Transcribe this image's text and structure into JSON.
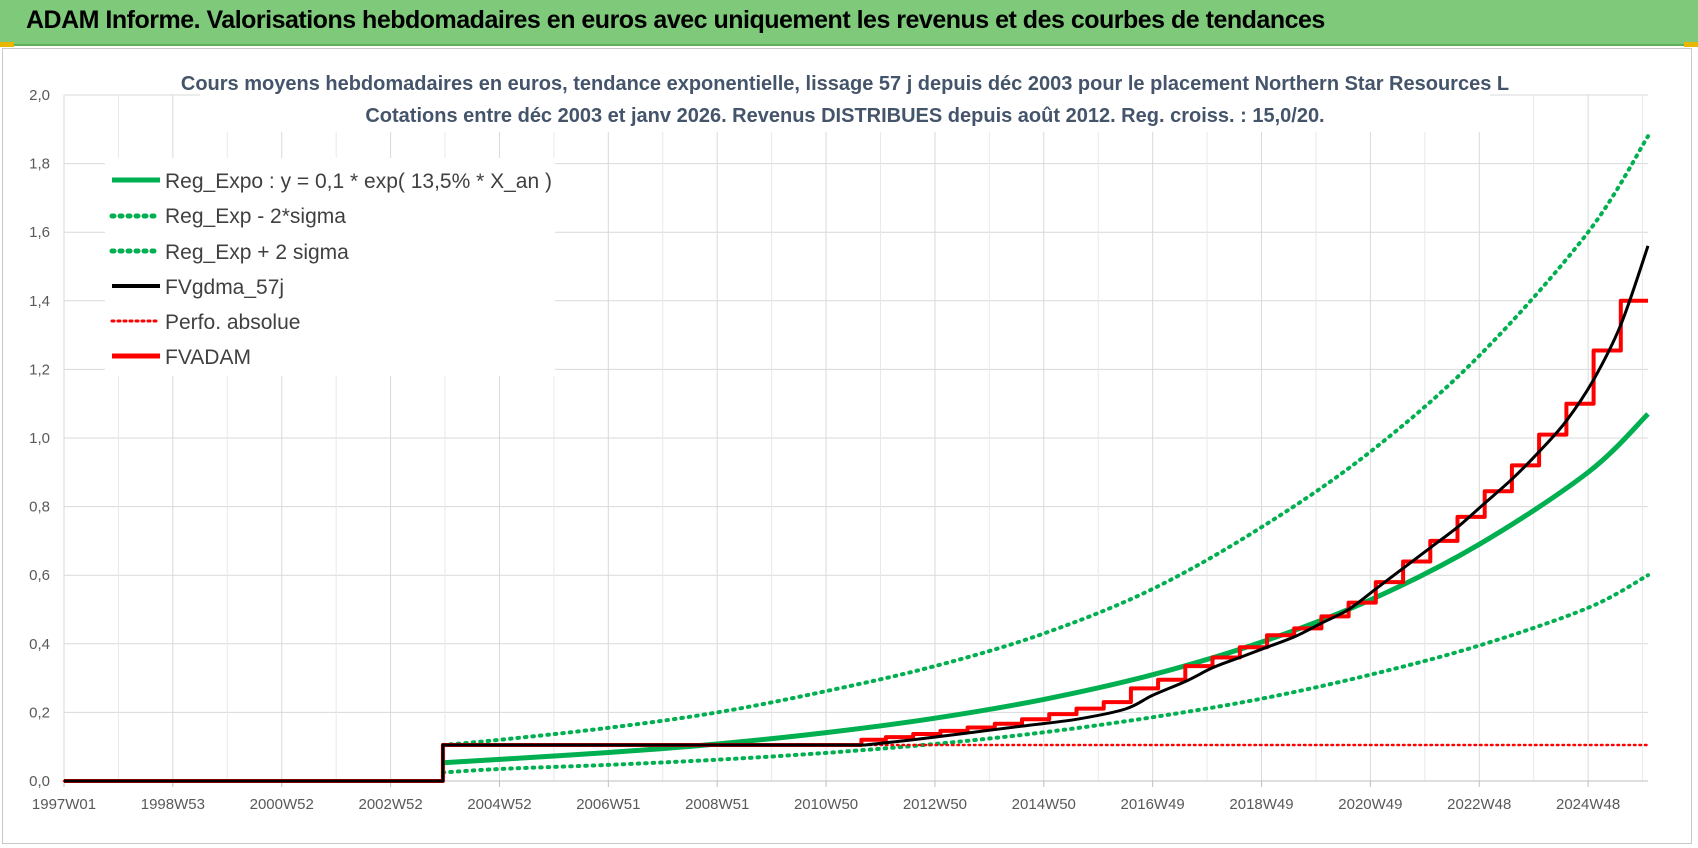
{
  "banner": {
    "title": "ADAM Informe. Valorisations hebdomadaires en euros avec uniquement les revenus et des courbes de tendances"
  },
  "colors": {
    "banner": "#7ec97a",
    "green": "#00b050",
    "red": "#ff0000",
    "black": "#000000",
    "title": "#44546a"
  },
  "chart_data": {
    "type": "line",
    "title": "Cours moyens hebdomadaires en euros, tendance exponentielle, lissage 57 j depuis déc 2003 pour le placement Northern Star Resources L",
    "subtitle": "Cotations entre déc 2003 et janv 2026. Revenus DISTRIBUES depuis août 2012. Reg. croiss. : 15,0/20.",
    "xlabel": "",
    "ylabel": "",
    "x_range": [
      1997.0,
      2026.1
    ],
    "ylim": [
      0,
      2.0
    ],
    "grid": true,
    "legend_position": "top-left",
    "x_ticks": [
      {
        "label": "1997W01",
        "x": 1997.0
      },
      {
        "label": "1998W53",
        "x": 1999.0
      },
      {
        "label": "2000W52",
        "x": 2001.0
      },
      {
        "label": "2002W52",
        "x": 2003.0
      },
      {
        "label": "2004W52",
        "x": 2005.0
      },
      {
        "label": "2006W51",
        "x": 2007.0
      },
      {
        "label": "2008W51",
        "x": 2009.0
      },
      {
        "label": "2010W50",
        "x": 2011.0
      },
      {
        "label": "2012W50",
        "x": 2013.0
      },
      {
        "label": "2014W50",
        "x": 2015.0
      },
      {
        "label": "2016W49",
        "x": 2017.0
      },
      {
        "label": "2018W49",
        "x": 2019.0
      },
      {
        "label": "2020W49",
        "x": 2021.0
      },
      {
        "label": "2022W48",
        "x": 2023.0
      },
      {
        "label": "2024W48",
        "x": 2025.0
      }
    ],
    "y_ticks": [
      "0,0",
      "0,2",
      "0,4",
      "0,6",
      "0,8",
      "1,0",
      "1,2",
      "1,4",
      "1,6",
      "1,8",
      "2,0"
    ],
    "y_tick_values": [
      0,
      0.2,
      0.4,
      0.6,
      0.8,
      1.0,
      1.2,
      1.4,
      1.6,
      1.8,
      2.0
    ],
    "series": [
      {
        "name": "Reg_Expo : y = 0,1 * exp( 13,5% *  X_an )",
        "color": "#00b050",
        "style": "solid",
        "x": [
          2003.96,
          2005,
          2007,
          2009,
          2011,
          2013,
          2015,
          2017,
          2019,
          2021,
          2023,
          2025,
          2026.1
        ],
        "y": [
          0.053,
          0.063,
          0.083,
          0.108,
          0.141,
          0.183,
          0.238,
          0.31,
          0.405,
          0.528,
          0.69,
          0.9,
          1.07
        ]
      },
      {
        "name": "Reg_Exp - 2*sigma",
        "color": "#00b050",
        "style": "dotted",
        "x": [
          2003.96,
          2005,
          2007,
          2009,
          2011,
          2013,
          2015,
          2017,
          2019,
          2021,
          2023,
          2025,
          2026.1
        ],
        "y": [
          0.025,
          0.035,
          0.047,
          0.062,
          0.082,
          0.108,
          0.142,
          0.186,
          0.24,
          0.31,
          0.395,
          0.505,
          0.6
        ]
      },
      {
        "name": "Reg_Exp + 2 sigma",
        "color": "#00b050",
        "style": "dotted",
        "x": [
          2003.96,
          2005,
          2007,
          2009,
          2011,
          2013,
          2015,
          2017,
          2019,
          2021,
          2023,
          2025,
          2026.1
        ],
        "y": [
          0.105,
          0.12,
          0.155,
          0.2,
          0.262,
          0.335,
          0.43,
          0.56,
          0.74,
          0.96,
          1.24,
          1.6,
          1.88
        ]
      },
      {
        "name": "FVgdma_57j",
        "color": "#000000",
        "style": "solid",
        "x": [
          1997.0,
          2003.96,
          2003.96,
          2011.7,
          2012.6,
          2013.6,
          2014.6,
          2015.6,
          2016.5,
          2017.0,
          2017.6,
          2018.1,
          2018.6,
          2019.1,
          2019.6,
          2020.1,
          2020.6,
          2021.1,
          2021.6,
          2022.1,
          2022.6,
          2023.1,
          2023.6,
          2024.1,
          2024.6,
          2025.1,
          2025.6,
          2026.1
        ],
        "y": [
          0.0,
          0.0,
          0.105,
          0.105,
          0.12,
          0.14,
          0.16,
          0.18,
          0.21,
          0.25,
          0.29,
          0.33,
          0.36,
          0.39,
          0.42,
          0.46,
          0.5,
          0.56,
          0.62,
          0.68,
          0.74,
          0.81,
          0.88,
          0.96,
          1.05,
          1.17,
          1.33,
          1.56
        ]
      },
      {
        "name": "Perfo. absolue",
        "color": "#ff0000",
        "style": "dotted",
        "x": [
          1997.0,
          2003.96,
          2003.96,
          2011.7,
          2026.1
        ],
        "y": [
          0.0,
          0.0,
          0.105,
          0.105,
          0.105
        ]
      },
      {
        "name": "FVADAM",
        "color": "#ff0000",
        "style": "solid",
        "x": [
          1997.0,
          2003.96,
          2003.96,
          2011.65,
          2011.65,
          2012.1,
          2012.1,
          2012.6,
          2012.6,
          2013.1,
          2013.1,
          2013.6,
          2013.6,
          2014.1,
          2014.1,
          2014.6,
          2014.6,
          2015.1,
          2015.1,
          2015.6,
          2015.6,
          2016.1,
          2016.1,
          2016.6,
          2016.6,
          2017.1,
          2017.1,
          2017.6,
          2017.6,
          2018.1,
          2018.1,
          2018.6,
          2018.6,
          2019.1,
          2019.1,
          2019.6,
          2019.6,
          2020.1,
          2020.1,
          2020.6,
          2020.6,
          2021.1,
          2021.1,
          2021.6,
          2021.6,
          2022.1,
          2022.1,
          2022.6,
          2022.6,
          2023.1,
          2023.1,
          2023.6,
          2023.6,
          2024.1,
          2024.1,
          2024.6,
          2024.6,
          2025.1,
          2025.1,
          2025.6,
          2025.6,
          2026.1
        ],
        "y": [
          0.0,
          0.0,
          0.105,
          0.105,
          0.12,
          0.12,
          0.128,
          0.128,
          0.137,
          0.137,
          0.146,
          0.146,
          0.156,
          0.156,
          0.167,
          0.167,
          0.18,
          0.18,
          0.195,
          0.195,
          0.211,
          0.211,
          0.23,
          0.23,
          0.27,
          0.27,
          0.295,
          0.295,
          0.335,
          0.335,
          0.36,
          0.36,
          0.39,
          0.39,
          0.425,
          0.425,
          0.445,
          0.445,
          0.48,
          0.48,
          0.52,
          0.52,
          0.58,
          0.58,
          0.64,
          0.64,
          0.7,
          0.7,
          0.77,
          0.77,
          0.845,
          0.845,
          0.92,
          0.92,
          1.01,
          1.01,
          1.1,
          1.1,
          1.255,
          1.255,
          1.4,
          1.4
        ]
      }
    ]
  }
}
